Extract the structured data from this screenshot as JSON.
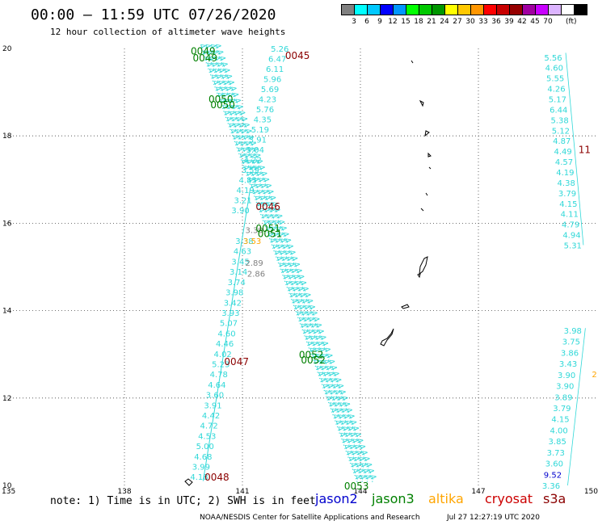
{
  "header": {
    "title": "00:00 – 11:59 UTC 07/26/2020",
    "subtitle": "12 hour collection of altimeter wave heights"
  },
  "legend": {
    "unit": "(ft)",
    "colors": [
      "#808080",
      "#00ffff",
      "#00c8ff",
      "#0000ff",
      "#0096ff",
      "#00ff00",
      "#00c800",
      "#009600",
      "#ffff00",
      "#ffc800",
      "#ff9600",
      "#ff0000",
      "#c80000",
      "#960000",
      "#a000a0",
      "#c800ff",
      "#dcb4ff",
      "#ffffff",
      "#000000"
    ],
    "labels": [
      "3",
      "6",
      "9",
      "12",
      "15",
      "18",
      "21",
      "24",
      "27",
      "30",
      "33",
      "36",
      "39",
      "42",
      "45",
      "70"
    ]
  },
  "axes": {
    "x_ticks": [
      "135",
      "138",
      "141",
      "144",
      "147",
      "150"
    ],
    "y_ticks": [
      "20",
      "18",
      "16",
      "14",
      "12",
      "10"
    ],
    "lon_range": [
      135,
      150
    ],
    "lat_range": [
      10,
      20
    ]
  },
  "track_labels": [
    {
      "text": "0045",
      "color": "#8b0000",
      "lon": 142.4,
      "lat": 19.85
    },
    {
      "text": "0046",
      "color": "#8b0000",
      "lon": 141.65,
      "lat": 16.4
    },
    {
      "text": "0047",
      "color": "#8b0000",
      "lon": 140.85,
      "lat": 12.85
    },
    {
      "text": "0048",
      "color": "#8b0000",
      "lon": 140.35,
      "lat": 10.2
    },
    {
      "text": "0049",
      "color": "#008000",
      "lon": 140.0,
      "lat": 19.95
    },
    {
      "text": "0049",
      "color": "#008000",
      "lon": 140.05,
      "lat": 19.8
    },
    {
      "text": "0050",
      "color": "#008000",
      "lon": 140.45,
      "lat": 18.85
    },
    {
      "text": "0050",
      "color": "#008000",
      "lon": 140.5,
      "lat": 18.72
    },
    {
      "text": "0051",
      "color": "#008000",
      "lon": 141.65,
      "lat": 15.9
    },
    {
      "text": "0051",
      "color": "#008000",
      "lon": 141.7,
      "lat": 15.78
    },
    {
      "text": "0052",
      "color": "#008000",
      "lon": 142.75,
      "lat": 13.0
    },
    {
      "text": "0052",
      "color": "#008000",
      "lon": 142.8,
      "lat": 12.88
    },
    {
      "text": "0053",
      "color": "#008000",
      "lon": 143.9,
      "lat": 10.0
    },
    {
      "text": "11",
      "color": "#8b0000",
      "lon": 149.7,
      "lat": 17.7
    }
  ],
  "swh_columns": [
    {
      "values": [
        "5.26",
        "6.47",
        "6.11",
        "5.96",
        "5.69",
        "4.23",
        "5.76",
        "4.35",
        "5.19",
        "3.91",
        "3.04",
        "4.22",
        "3.59",
        "4.83",
        "4.19",
        "3.21",
        "3.90"
      ],
      "lon_top": 141.95,
      "lat_top": 20.0,
      "lon_bottom": 140.95,
      "lat_bottom": 16.3
    },
    {
      "values": [
        "3.38",
        "4.63",
        "3.45",
        "3.14",
        "3.74",
        "3.98",
        "3.42",
        "3.93",
        "5.07",
        "4.60",
        "4.46",
        "4.02",
        "5.23",
        "4.78",
        "4.64",
        "3.60",
        "3.91",
        "4.42",
        "4.72",
        "4.53",
        "5.00",
        "4.68",
        "3.99",
        "4.18"
      ],
      "lon_top": 141.05,
      "lat_top": 15.6,
      "lon_bottom": 139.9,
      "lat_bottom": 10.2
    },
    {
      "values": [
        "5.56",
        "4.60",
        "5.55",
        "4.26",
        "5.17",
        "6.44",
        "5.38",
        "5.12",
        "4.87",
        "4.49",
        "4.57",
        "4.19",
        "4.38",
        "3.79",
        "4.15",
        "4.11",
        "4.79",
        "4.94",
        "5.31"
      ],
      "lon_top": 148.9,
      "lat_top": 19.8,
      "lon_bottom": 149.4,
      "lat_bottom": 15.5
    },
    {
      "values": [
        "3.98",
        "3.75",
        "3.86",
        "3.43",
        "3.90",
        "3.90",
        "3.89",
        "3.79",
        "4.15",
        "4.00",
        "3.85",
        "3.73",
        "3.60",
        "9.52",
        "3.36"
      ],
      "lon_top": 149.4,
      "lat_top": 13.55,
      "lon_bottom": 148.85,
      "lat_bottom": 10.0
    }
  ],
  "extra_values": [
    {
      "text": "3.39",
      "color": "#808080",
      "lon": 141.3,
      "lat": 15.85
    },
    {
      "text": "2.89",
      "color": "#808080",
      "lon": 141.3,
      "lat": 15.1
    },
    {
      "text": "2.86",
      "color": "#808080",
      "lon": 141.35,
      "lat": 14.85
    },
    {
      "text": "3.53",
      "color": "#ffa500",
      "lon": 141.25,
      "lat": 15.6
    },
    {
      "text": "2",
      "color": "#ffa500",
      "lon": 149.95,
      "lat": 12.55
    }
  ],
  "footer": {
    "note": "note:  1) Time is in UTC;  2) SWH is in feet",
    "satellites": [
      {
        "name": "jason2",
        "color": "#0000cd"
      },
      {
        "name": "jason3",
        "color": "#008000"
      },
      {
        "name": "altika",
        "color": "#ffa500"
      },
      {
        "name": "cryosat",
        "color": "#cc0000"
      },
      {
        "name": "s3a",
        "color": "#8b0000"
      }
    ],
    "credit": "NOAA/NESDIS Center for Satellite Applications and Research",
    "timestamp": "Jul 27 12:27:19 UTC 2020"
  }
}
